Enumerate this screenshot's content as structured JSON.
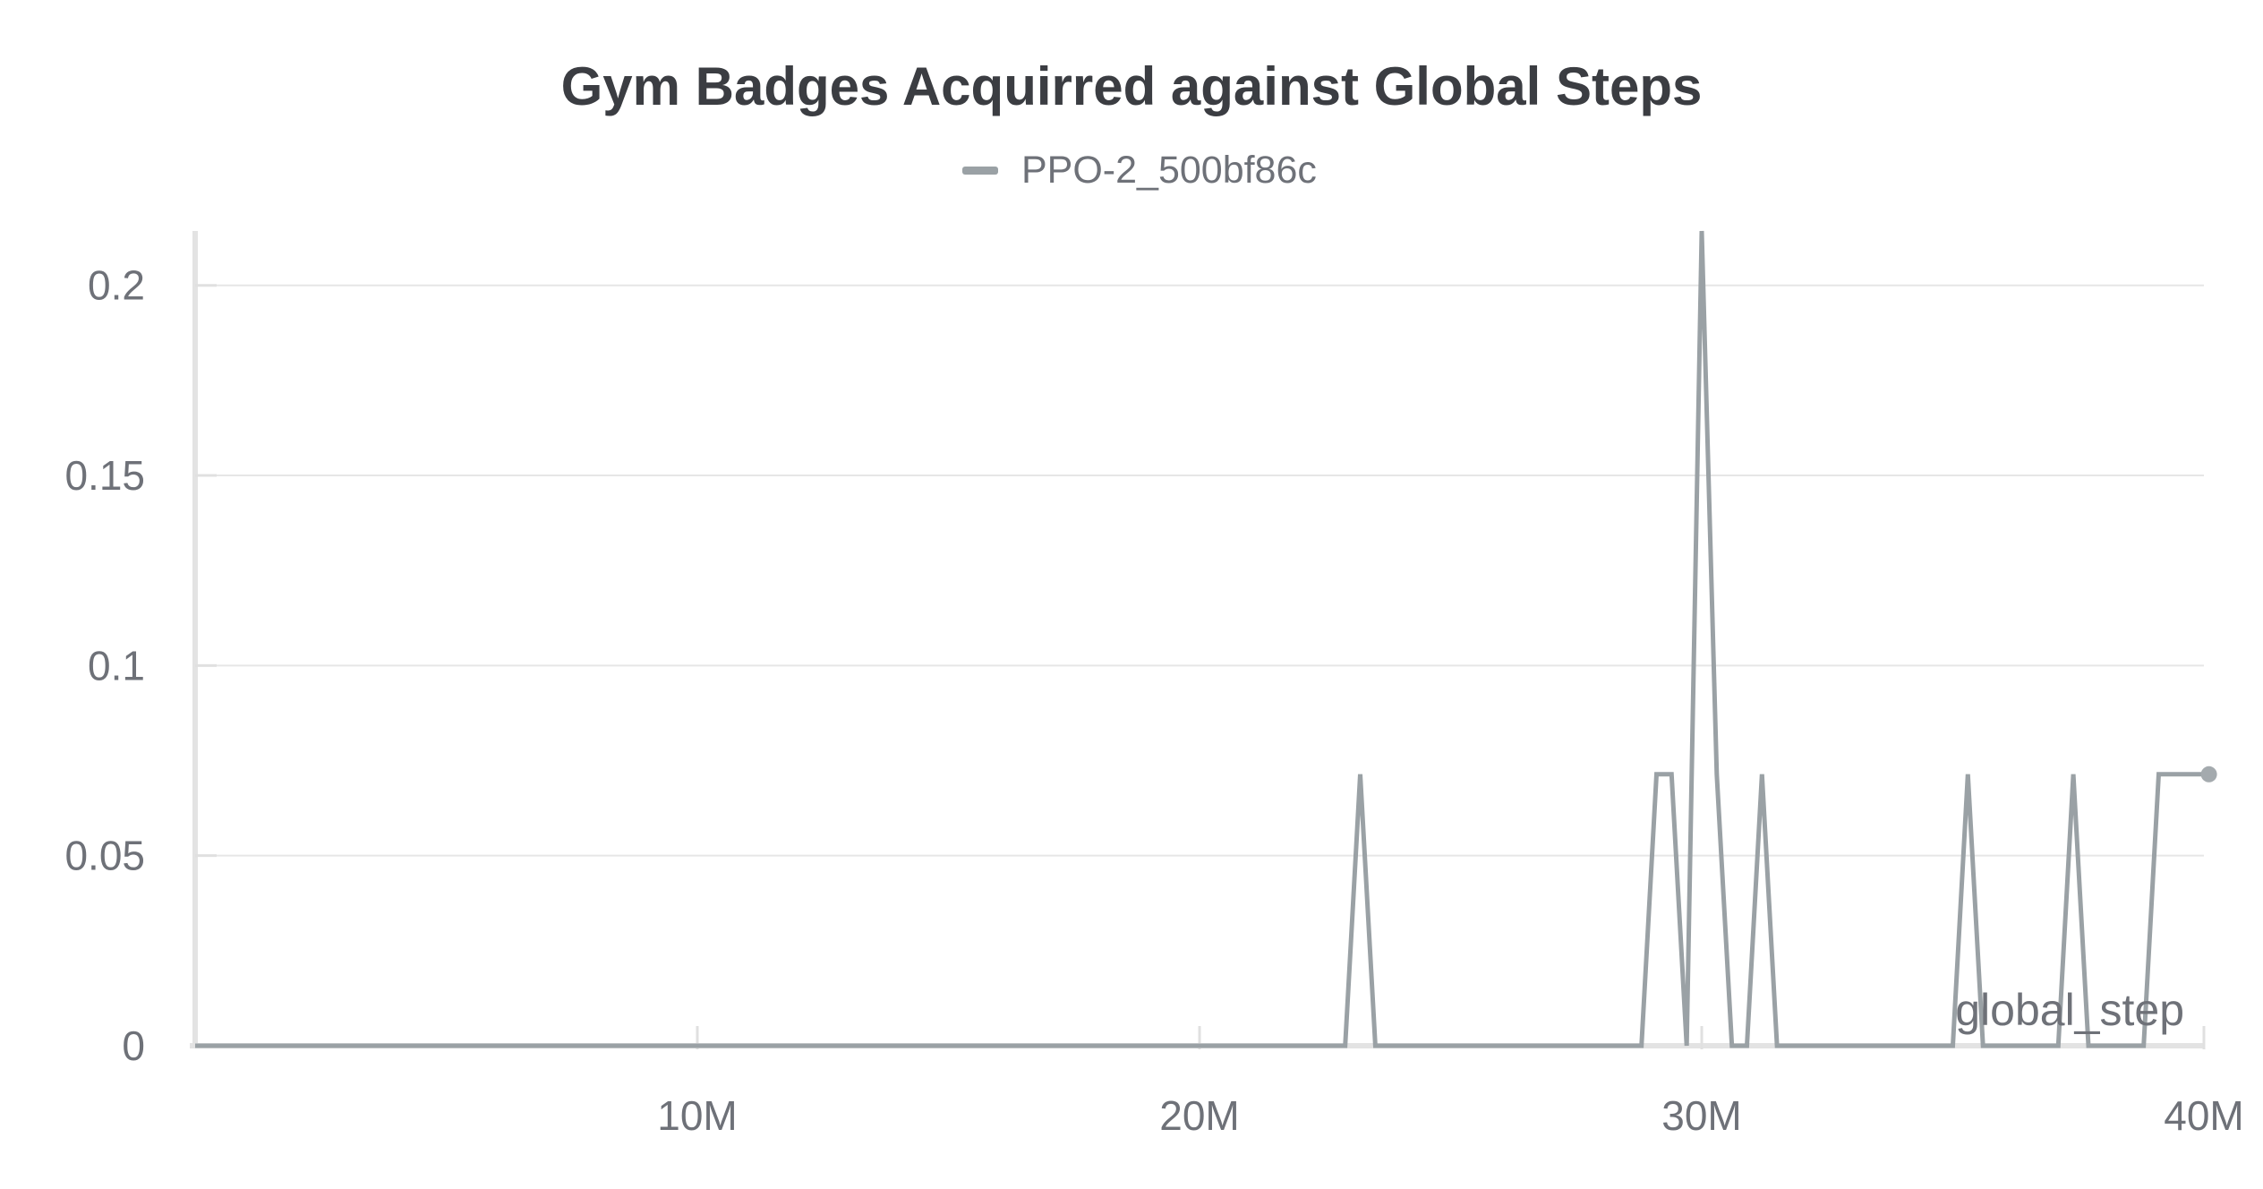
{
  "chart_data": {
    "type": "line",
    "title": "Gym Badges Acquirred against Global Steps",
    "xlabel": "global_step",
    "ylabel": "",
    "xlim": [
      0,
      40000000
    ],
    "ylim": [
      0,
      0.2143
    ],
    "x_ticks": [
      {
        "value": 10000000,
        "label": "10M"
      },
      {
        "value": 20000000,
        "label": "20M"
      },
      {
        "value": 30000000,
        "label": "30M"
      },
      {
        "value": 40000000,
        "label": "40M"
      }
    ],
    "y_ticks": [
      {
        "value": 0,
        "label": "0"
      },
      {
        "value": 0.05,
        "label": "0.05"
      },
      {
        "value": 0.1,
        "label": "0.1"
      },
      {
        "value": 0.15,
        "label": "0.15"
      },
      {
        "value": 0.2,
        "label": "0.2"
      }
    ],
    "grid": true,
    "legend_position": "top-center",
    "series": [
      {
        "name": "PPO-2_500bf86c",
        "color": "#9aa1a5",
        "x": [
          0,
          22900000,
          23200000,
          23500000,
          28800000,
          29100000,
          29400000,
          29700000,
          30000000,
          30300000,
          30600000,
          30900000,
          31200000,
          31500000,
          35000000,
          35300000,
          35600000,
          37100000,
          37400000,
          37700000,
          38800000,
          39100000,
          40100000
        ],
        "y": [
          0,
          0,
          0.0714,
          0,
          0,
          0.0714,
          0.0714,
          0,
          0.2143,
          0.0714,
          0,
          0,
          0.0714,
          0,
          0,
          0.0714,
          0,
          0,
          0.0714,
          0,
          0,
          0.0714,
          0.0714
        ]
      }
    ]
  }
}
